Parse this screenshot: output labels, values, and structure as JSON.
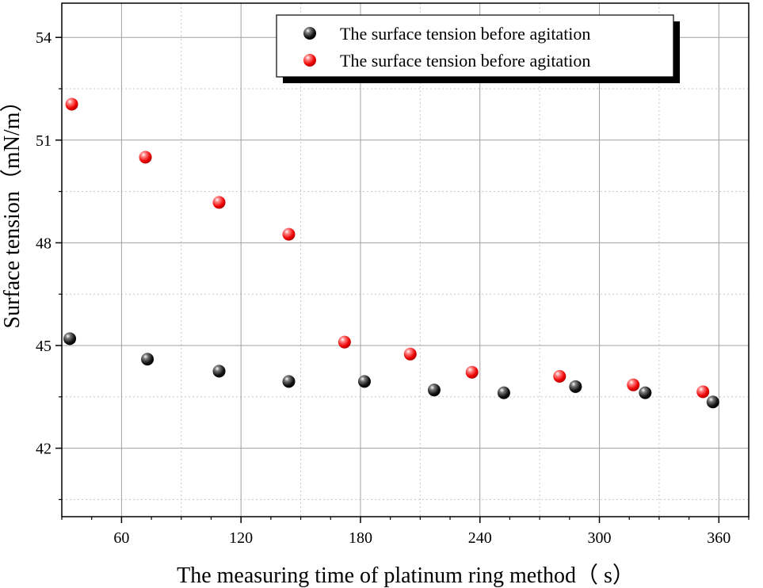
{
  "chart_data": {
    "type": "scatter",
    "title": "",
    "xlabel": "The measuring time of platinum ring method（ s）",
    "ylabel": "Surface tension（mN/m）",
    "xlim": [
      30,
      375
    ],
    "ylim": [
      40,
      55
    ],
    "x_ticks": [
      60,
      120,
      180,
      240,
      300,
      360
    ],
    "y_ticks": [
      42,
      45,
      48,
      51,
      54
    ],
    "grid": true,
    "legend_position": "top-right",
    "series": [
      {
        "name": "The surface tension before agitation",
        "color": "#000000",
        "points": [
          {
            "x": 34,
            "y": 45.2
          },
          {
            "x": 73,
            "y": 44.6
          },
          {
            "x": 109,
            "y": 44.25
          },
          {
            "x": 144,
            "y": 43.95
          },
          {
            "x": 182,
            "y": 43.95
          },
          {
            "x": 217,
            "y": 43.7
          },
          {
            "x": 252,
            "y": 43.62
          },
          {
            "x": 288,
            "y": 43.8
          },
          {
            "x": 323,
            "y": 43.62
          },
          {
            "x": 357,
            "y": 43.35
          }
        ]
      },
      {
        "name": "The surface tension before agitation",
        "color": "#ff0000",
        "points": [
          {
            "x": 35,
            "y": 52.05
          },
          {
            "x": 72,
            "y": 50.5
          },
          {
            "x": 109,
            "y": 49.18
          },
          {
            "x": 144,
            "y": 48.25
          },
          {
            "x": 172,
            "y": 45.1
          },
          {
            "x": 205,
            "y": 44.75
          },
          {
            "x": 236,
            "y": 44.22
          },
          {
            "x": 280,
            "y": 44.1
          },
          {
            "x": 317,
            "y": 43.85
          },
          {
            "x": 352,
            "y": 43.65
          }
        ]
      }
    ]
  }
}
